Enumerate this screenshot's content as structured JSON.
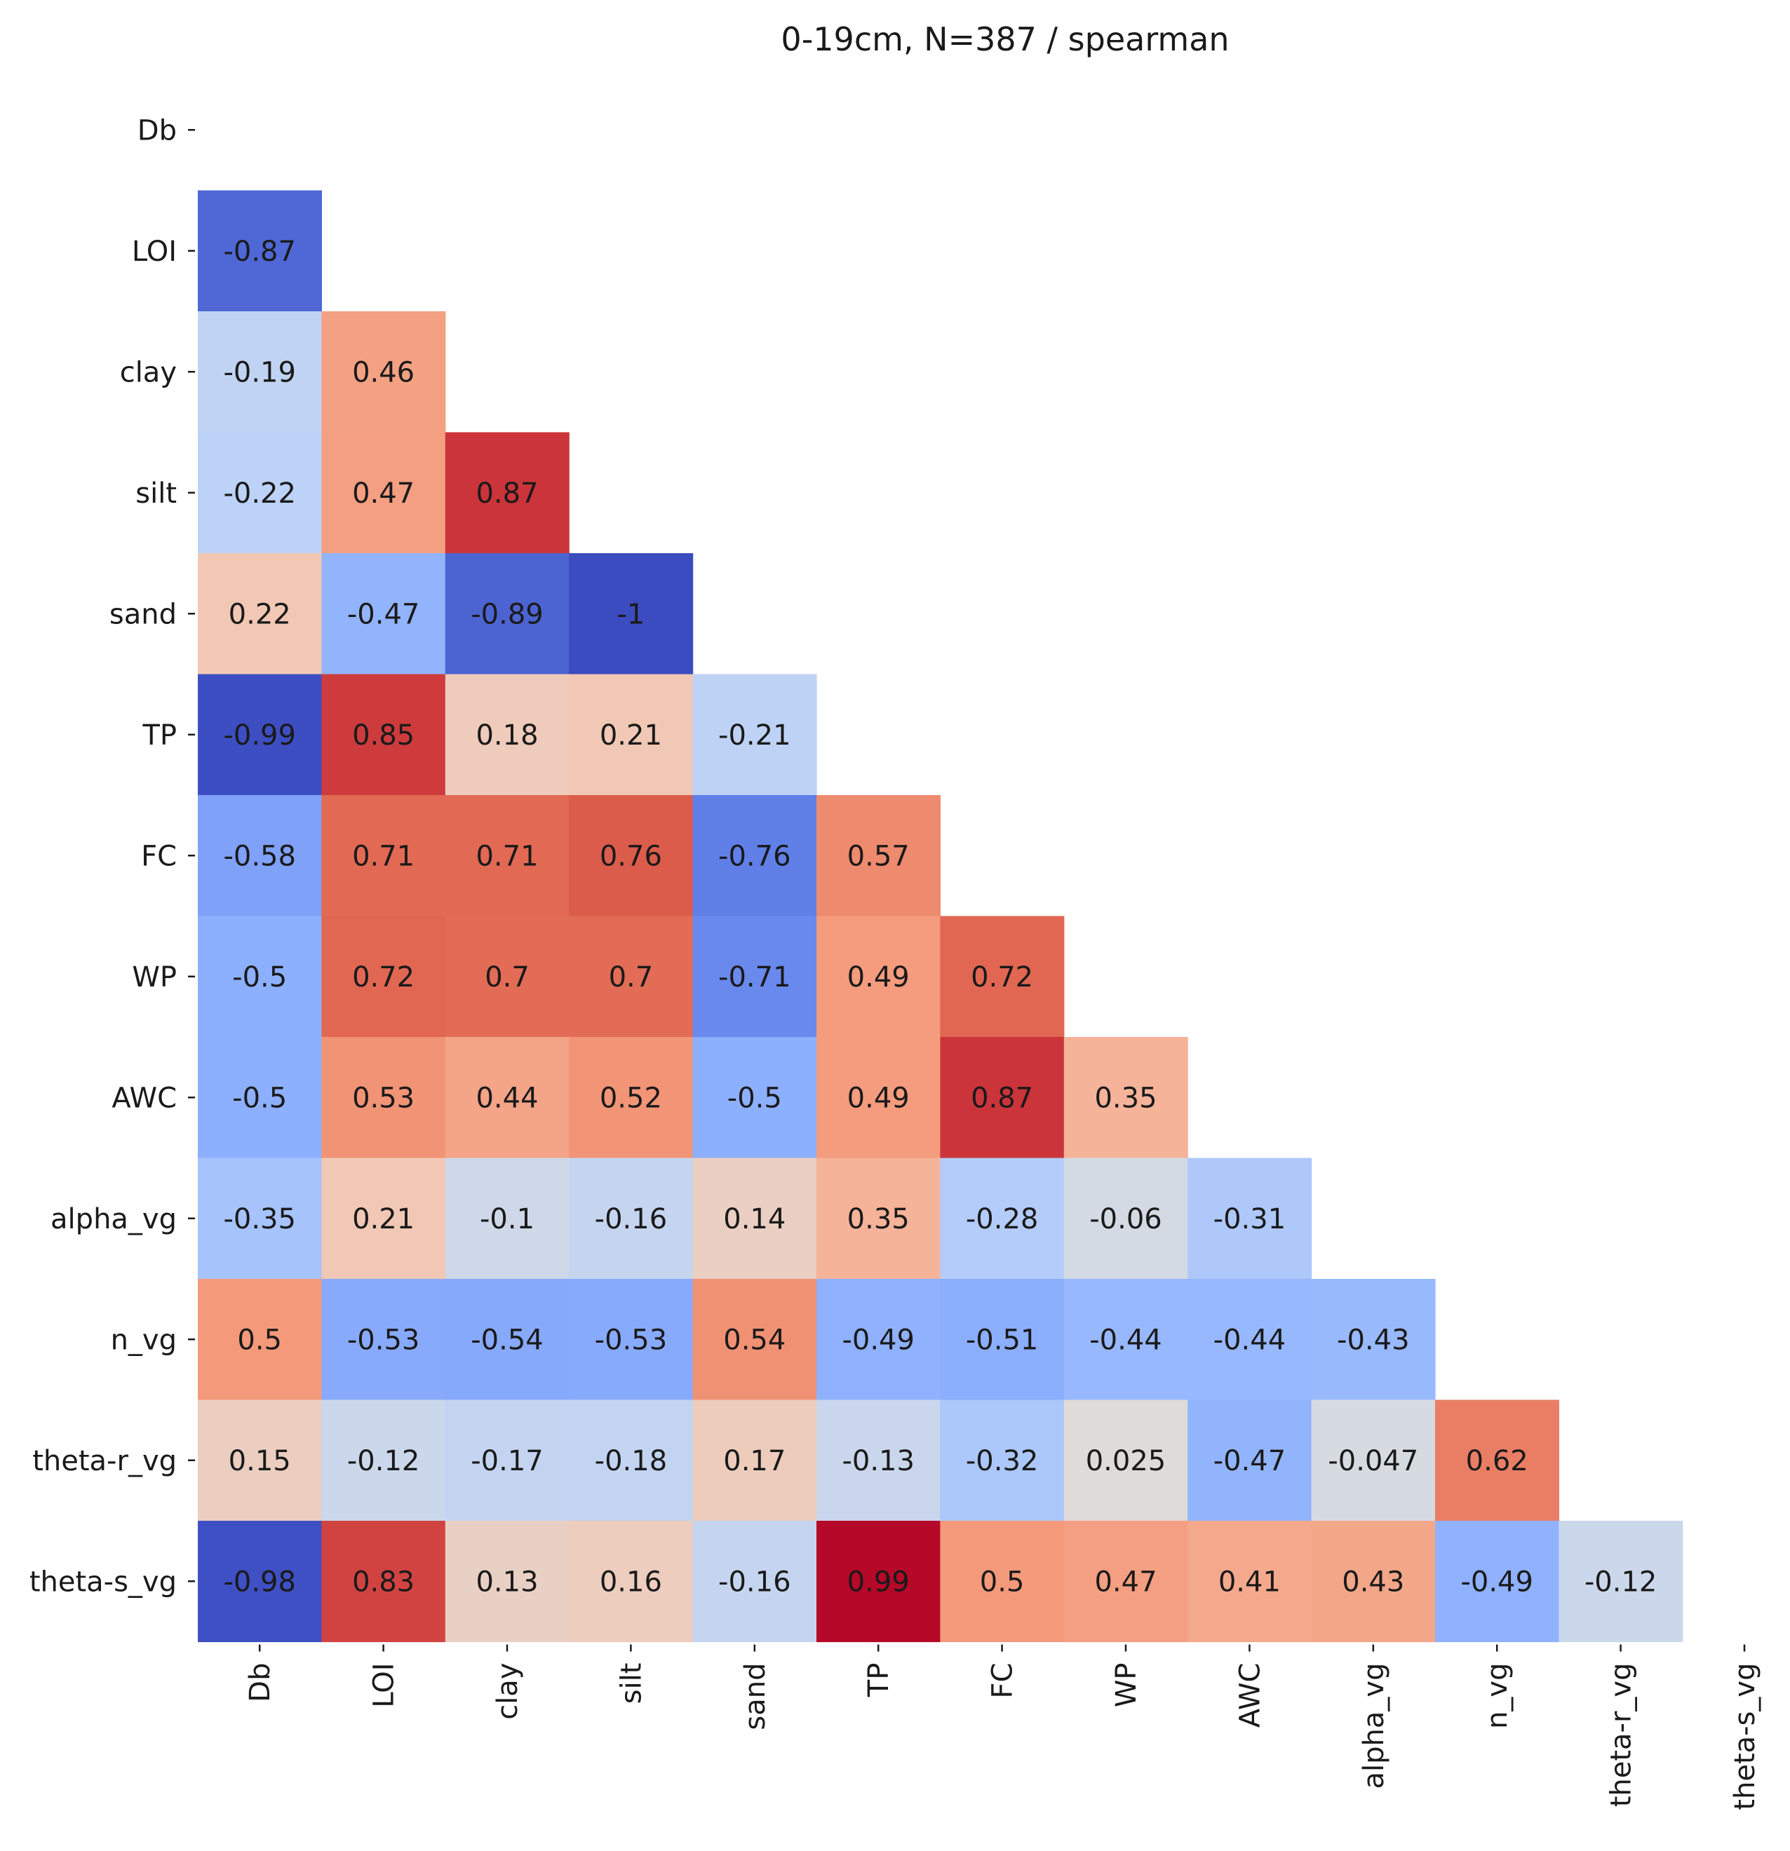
{
  "chart_data": {
    "type": "heatmap",
    "title": "0-19cm, N=387 / spearman",
    "xlabel": "",
    "ylabel": "",
    "colormap": "coolwarm",
    "vmin": -1,
    "vmax": 1,
    "mask": "upper triangle incl. diagonal",
    "variables": [
      "Db",
      "LOI",
      "clay",
      "silt",
      "sand",
      "TP",
      "FC",
      "WP",
      "AWC",
      "alpha_vg",
      "n_vg",
      "theta-r_vg",
      "theta-s_vg"
    ],
    "matrix": [
      [],
      [
        -0.87
      ],
      [
        -0.19,
        0.46
      ],
      [
        -0.22,
        0.47,
        0.87
      ],
      [
        0.22,
        -0.47,
        -0.89,
        -1
      ],
      [
        -0.99,
        0.85,
        0.18,
        0.21,
        -0.21
      ],
      [
        -0.58,
        0.71,
        0.71,
        0.76,
        -0.76,
        0.57
      ],
      [
        -0.5,
        0.72,
        0.7,
        0.7,
        -0.71,
        0.49,
        0.72
      ],
      [
        -0.5,
        0.53,
        0.44,
        0.52,
        -0.5,
        0.49,
        0.87,
        0.35
      ],
      [
        -0.35,
        0.21,
        -0.1,
        -0.16,
        0.14,
        0.35,
        -0.28,
        -0.06,
        -0.31
      ],
      [
        0.5,
        -0.53,
        -0.54,
        -0.53,
        0.54,
        -0.49,
        -0.51,
        -0.44,
        -0.44,
        -0.43
      ],
      [
        0.15,
        -0.12,
        -0.17,
        -0.18,
        0.17,
        -0.13,
        -0.32,
        0.025,
        -0.47,
        -0.047,
        0.62
      ],
      [
        -0.98,
        0.83,
        0.13,
        0.16,
        -0.16,
        0.99,
        0.5,
        0.47,
        0.41,
        0.43,
        -0.49,
        -0.12
      ]
    ]
  }
}
